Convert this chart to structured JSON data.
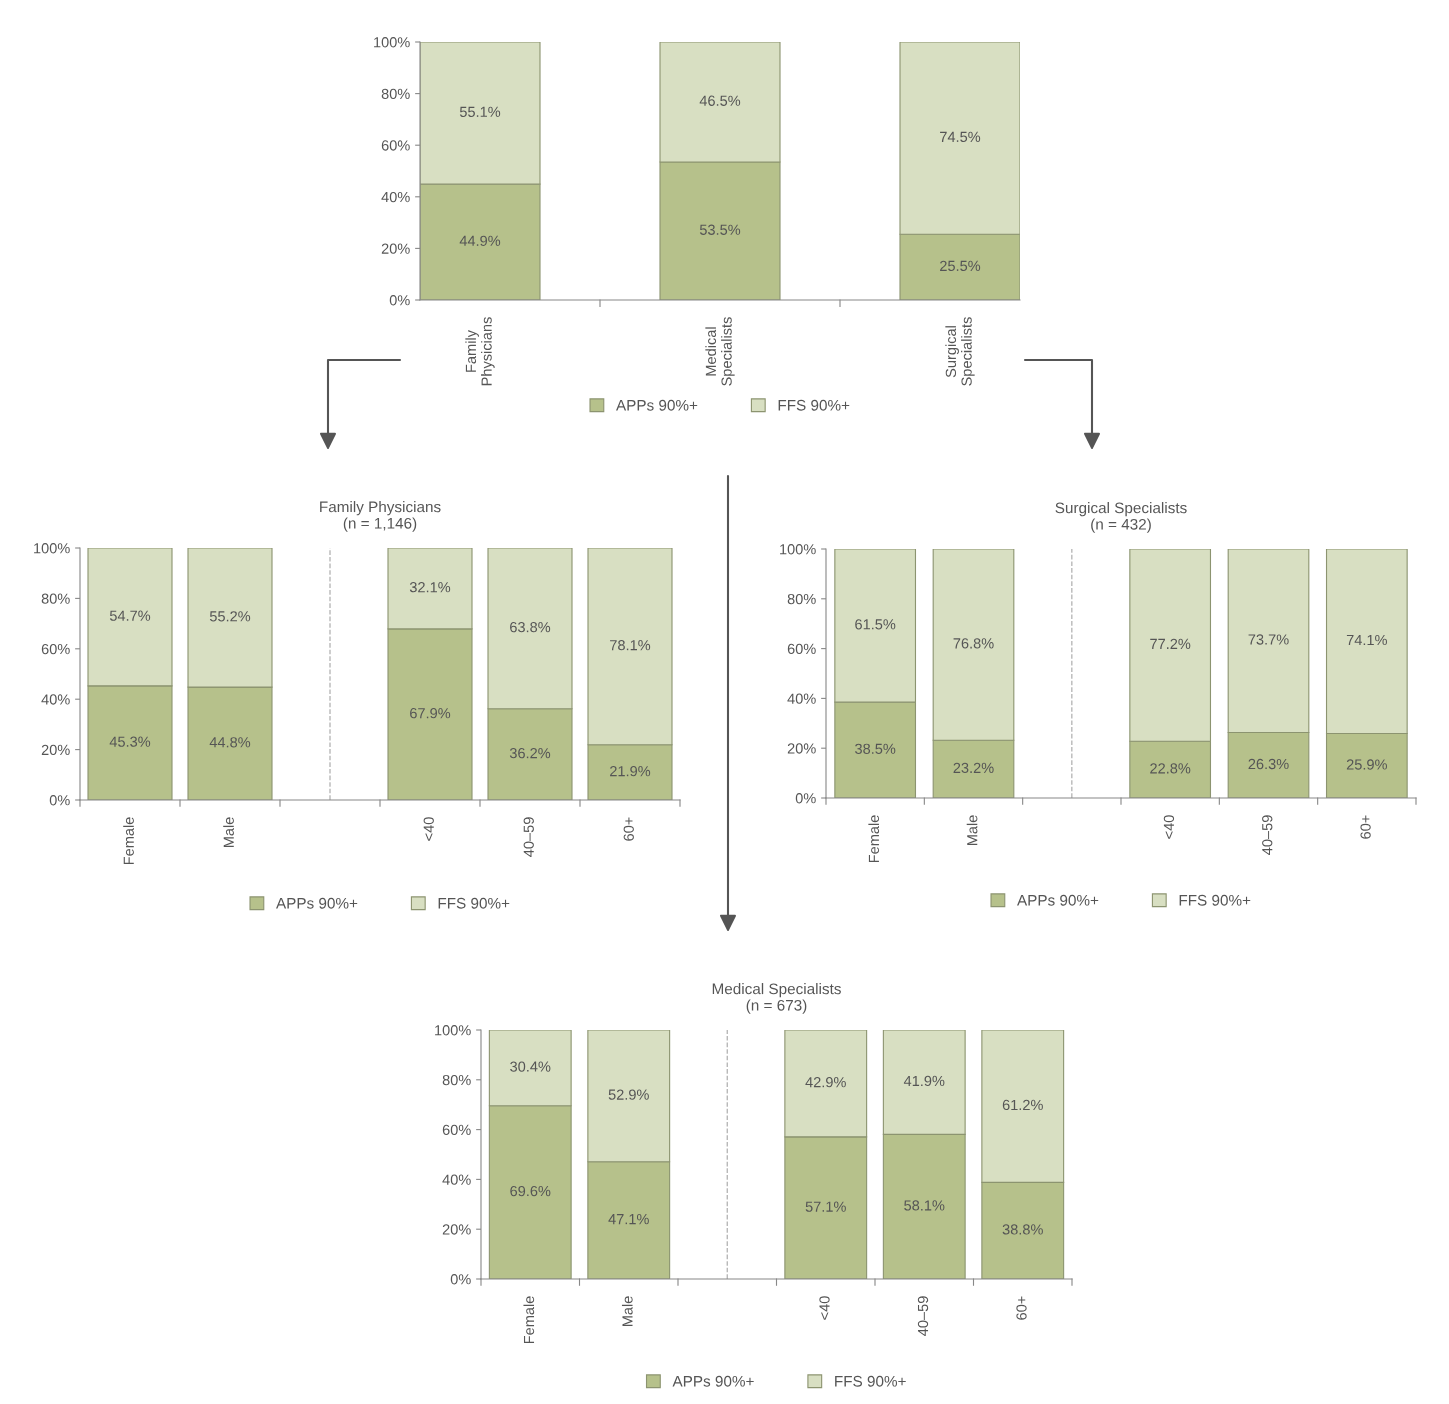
{
  "chart_data": [
    {
      "type": "bar",
      "stacked": true,
      "categories": [
        "Family\nPhysicians",
        "Medical\nSpecialists",
        "Surgical\nSpecialists"
      ],
      "ylim": [
        0,
        100
      ],
      "yticks": [
        {
          "value": 0,
          "label": "0%"
        },
        {
          "value": 20,
          "label": "20%"
        },
        {
          "value": 40,
          "label": "40%"
        },
        {
          "value": 60,
          "label": "60%"
        },
        {
          "value": 80,
          "label": "80%"
        },
        {
          "value": 100,
          "label": "100%"
        }
      ],
      "legend": "bottom",
      "series": [
        {
          "name": "APPs 90%+",
          "color": "#b6c18b",
          "values": [
            44.9,
            53.5,
            25.5
          ],
          "value_labels": [
            "44.9%",
            "53.5%",
            "25.5%"
          ]
        },
        {
          "name": "FFS 90%+",
          "color": "#d8dfc2",
          "values": [
            55.1,
            46.5,
            74.5
          ],
          "value_labels": [
            "55.1%",
            "46.5%",
            "74.5%"
          ]
        }
      ]
    },
    {
      "type": "bar",
      "stacked": true,
      "title": "Family Physicians",
      "subtitle": "(n = 1,146)",
      "categories": [
        "Female",
        "Male",
        null,
        "<40",
        "40–59",
        "60+"
      ],
      "ylim": [
        0,
        100
      ],
      "yticks": [
        {
          "value": 0,
          "label": "0%"
        },
        {
          "value": 20,
          "label": "20%"
        },
        {
          "value": 40,
          "label": "40%"
        },
        {
          "value": 60,
          "label": "60%"
        },
        {
          "value": 80,
          "label": "80%"
        },
        {
          "value": 100,
          "label": "100%"
        }
      ],
      "legend": "bottom",
      "series": [
        {
          "name": "APPs 90%+",
          "color": "#b6c18b",
          "values": [
            45.3,
            44.8,
            null,
            67.9,
            36.2,
            21.9
          ],
          "value_labels": [
            "45.3%",
            "44.8%",
            null,
            "67.9%",
            "36.2%",
            "21.9%"
          ]
        },
        {
          "name": "FFS 90%+",
          "color": "#d8dfc2",
          "values": [
            54.7,
            55.2,
            null,
            32.1,
            63.8,
            78.1
          ],
          "value_labels": [
            "54.7%",
            "55.2%",
            null,
            "32.1%",
            "63.8%",
            "78.1%"
          ]
        }
      ]
    },
    {
      "type": "bar",
      "stacked": true,
      "title": "Surgical Specialists",
      "subtitle": "(n = 432)",
      "categories": [
        "Female",
        "Male",
        null,
        "<40",
        "40–59",
        "60+"
      ],
      "ylim": [
        0,
        100
      ],
      "yticks": [
        {
          "value": 0,
          "label": "0%"
        },
        {
          "value": 20,
          "label": "20%"
        },
        {
          "value": 40,
          "label": "40%"
        },
        {
          "value": 60,
          "label": "60%"
        },
        {
          "value": 80,
          "label": "80%"
        },
        {
          "value": 100,
          "label": "100%"
        }
      ],
      "legend": "bottom",
      "series": [
        {
          "name": "APPs 90%+",
          "color": "#b6c18b",
          "values": [
            38.5,
            23.2,
            null,
            22.8,
            26.3,
            25.9
          ],
          "value_labels": [
            "38.5%",
            "23.2%",
            null,
            "22.8%",
            "26.3%",
            "25.9%"
          ]
        },
        {
          "name": "FFS 90%+",
          "color": "#d8dfc2",
          "values": [
            61.5,
            76.8,
            null,
            77.2,
            73.7,
            74.1
          ],
          "value_labels": [
            "61.5%",
            "76.8%",
            null,
            "77.2%",
            "73.7%",
            "74.1%"
          ]
        }
      ]
    },
    {
      "type": "bar",
      "stacked": true,
      "title": "Medical Specialists",
      "subtitle": "(n = 673)",
      "categories": [
        "Female",
        "Male",
        null,
        "<40",
        "40–59",
        "60+"
      ],
      "ylim": [
        0,
        100
      ],
      "yticks": [
        {
          "value": 0,
          "label": "0%"
        },
        {
          "value": 20,
          "label": "20%"
        },
        {
          "value": 40,
          "label": "40%"
        },
        {
          "value": 60,
          "label": "60%"
        },
        {
          "value": 80,
          "label": "80%"
        },
        {
          "value": 100,
          "label": "100%"
        }
      ],
      "legend": "bottom",
      "series": [
        {
          "name": "APPs 90%+",
          "color": "#b6c18b",
          "values": [
            69.6,
            47.1,
            null,
            57.1,
            58.1,
            38.8
          ],
          "value_labels": [
            "69.6%",
            "47.1%",
            null,
            "57.1%",
            "58.1%",
            "38.8%"
          ]
        },
        {
          "name": "FFS 90%+",
          "color": "#d8dfc2",
          "values": [
            30.4,
            52.9,
            null,
            42.9,
            41.9,
            61.2
          ],
          "value_labels": [
            "30.4%",
            "52.9%",
            null,
            "42.9%",
            "41.9%",
            "61.2%"
          ]
        }
      ]
    }
  ]
}
